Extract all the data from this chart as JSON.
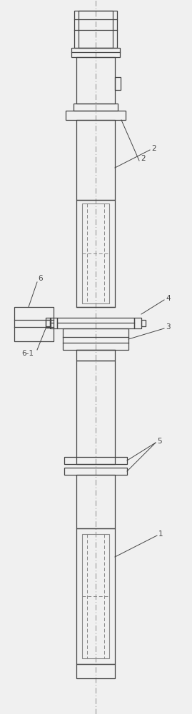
{
  "bg_color": "#f0f0f0",
  "line_color": "#444444",
  "dash_color": "#888888",
  "fig_width": 2.69,
  "fig_height": 10.0,
  "dpi": 100
}
